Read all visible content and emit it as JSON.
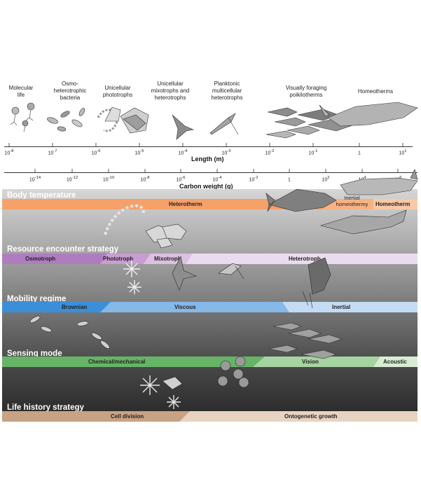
{
  "groups": [
    {
      "l1": "Molecular",
      "l2": "life",
      "l3": ""
    },
    {
      "l1": "Osmo-",
      "l2": "heterotrophic",
      "l3": "bacteria"
    },
    {
      "l1": "Unicellular",
      "l2": "phototrophs",
      "l3": ""
    },
    {
      "l1": "Unicellular",
      "l2": "mixotrophs and",
      "l3": "heterotrophs"
    },
    {
      "l1": "Planktonic",
      "l2": "multicellular",
      "l3": "heterotrophs"
    },
    {
      "l1": "Visually foraging",
      "l2": "poikilotherms",
      "l3": ""
    },
    {
      "l1": "Homeotherms",
      "l2": "",
      "l3": ""
    }
  ],
  "length_axis": {
    "title": "Length (m)",
    "ticks": [
      {
        "base": "10",
        "exp": "-8"
      },
      {
        "base": "10",
        "exp": "-7"
      },
      {
        "base": "10",
        "exp": "-6"
      },
      {
        "base": "10",
        "exp": "-5"
      },
      {
        "base": "10",
        "exp": "-4"
      },
      {
        "base": "10",
        "exp": "-3"
      },
      {
        "base": "10",
        "exp": "-2"
      },
      {
        "base": "10",
        "exp": "-1"
      },
      {
        "base": "1",
        "exp": ""
      },
      {
        "base": "10",
        "exp": "1"
      }
    ]
  },
  "weight_axis": {
    "title": "Carbon weight (g)",
    "ticks": [
      {
        "base": "10",
        "exp": "-14"
      },
      {
        "base": "10",
        "exp": "-12"
      },
      {
        "base": "10",
        "exp": "-10"
      },
      {
        "base": "10",
        "exp": "-8"
      },
      {
        "base": "10",
        "exp": "-6"
      },
      {
        "base": "10",
        "exp": "-4"
      },
      {
        "base": "10",
        "exp": "-2"
      },
      {
        "base": "1",
        "exp": ""
      },
      {
        "base": "10",
        "exp": "2"
      },
      {
        "base": "10",
        "exp": "4"
      },
      {
        "base": "10",
        "exp": "6"
      }
    ]
  },
  "sections": {
    "body_temperature": {
      "title": "Body temperature",
      "heterotherm": "Heterotherm",
      "inertial_1": "Inertial",
      "inertial_2": "homeothermy",
      "homeotherm": "Homeotherm"
    },
    "resource": {
      "title": "Resource encounter strategy",
      "osmotroph": "Osmotroph",
      "phototroph": "Phototroph",
      "mixotroph": "Mixotroph",
      "heterotroph": "Heterotroph"
    },
    "mobility": {
      "title": "Mobility regime",
      "brownian": "Brownian",
      "viscous": "Viscous",
      "inertial": "Inertial"
    },
    "sensing": {
      "title": "Sensing mode",
      "chemical": "Chemical/mechanical",
      "vision": "Vision",
      "acoustic": "Acoustic"
    },
    "life_history": {
      "title": "Life history strategy",
      "cell_division": "Cell division",
      "ontogenetic": "Ontogenetic growth"
    }
  },
  "colors": {
    "temperature_orange": "#f6a06a",
    "temperature_light": "#f9c9a6",
    "osmotroph": "#b07cc0",
    "phototroph": "#c99dd2",
    "mixotroph": "#dcc0e2",
    "heterotroph_bar": "#eadcee",
    "brownian": "#3b8fd8",
    "viscous": "#86b8e8",
    "inertial": "#c4dcf3",
    "chemical": "#66b466",
    "vision": "#a6d4a0",
    "acoustic": "#d8ecd4",
    "cell_division": "#c9a283",
    "ontogenetic": "#e8d3c2"
  }
}
